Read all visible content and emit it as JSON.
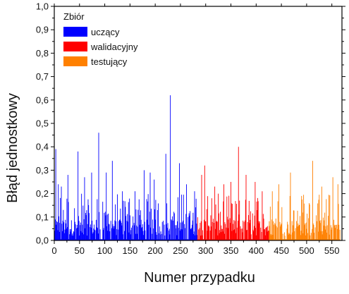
{
  "chart_data": {
    "type": "bar",
    "title": "",
    "xlabel": "Numer przypadku",
    "ylabel": "Błąd jednostkowy",
    "xlim": [
      0,
      570
    ],
    "ylim": [
      0,
      1.0
    ],
    "xticks": [
      "0",
      "50",
      "100",
      "150",
      "200",
      "250",
      "300",
      "350",
      "400",
      "450",
      "500",
      "550"
    ],
    "yticks": [
      "0,0",
      "0,1",
      "0,2",
      "0,3",
      "0,4",
      "0,5",
      "0,6",
      "0,7",
      "0,8",
      "0,9",
      "1,0"
    ],
    "grid": false,
    "legend": {
      "title": "Zbiór",
      "placement": "top-left"
    },
    "series": [
      {
        "name": "uczący",
        "color": "#0000ff",
        "x_range": [
          1,
          283
        ],
        "peaks": [
          {
            "x": 3,
            "y": 0.39
          },
          {
            "x": 8,
            "y": 0.24
          },
          {
            "x": 14,
            "y": 0.23
          },
          {
            "x": 27,
            "y": 0.28
          },
          {
            "x": 47,
            "y": 0.38
          },
          {
            "x": 60,
            "y": 0.27
          },
          {
            "x": 74,
            "y": 0.29
          },
          {
            "x": 88,
            "y": 0.46
          },
          {
            "x": 103,
            "y": 0.29
          },
          {
            "x": 115,
            "y": 0.34
          },
          {
            "x": 135,
            "y": 0.21
          },
          {
            "x": 160,
            "y": 0.21
          },
          {
            "x": 178,
            "y": 0.3
          },
          {
            "x": 190,
            "y": 0.29
          },
          {
            "x": 198,
            "y": 0.26
          },
          {
            "x": 221,
            "y": 0.37
          },
          {
            "x": 230,
            "y": 0.62
          },
          {
            "x": 248,
            "y": 0.33
          },
          {
            "x": 262,
            "y": 0.24
          },
          {
            "x": 278,
            "y": 0.21
          }
        ]
      },
      {
        "name": "walidacyjny",
        "color": "#ff0000",
        "x_range": [
          284,
          425
        ],
        "peaks": [
          {
            "x": 292,
            "y": 0.28
          },
          {
            "x": 298,
            "y": 0.32
          },
          {
            "x": 318,
            "y": 0.23
          },
          {
            "x": 336,
            "y": 0.24
          },
          {
            "x": 350,
            "y": 0.25
          },
          {
            "x": 365,
            "y": 0.4
          },
          {
            "x": 380,
            "y": 0.28
          },
          {
            "x": 398,
            "y": 0.25
          },
          {
            "x": 412,
            "y": 0.21
          }
        ]
      },
      {
        "name": "testujący",
        "color": "#ff8000",
        "x_range": [
          426,
          566
        ],
        "peaks": [
          {
            "x": 432,
            "y": 0.21
          },
          {
            "x": 445,
            "y": 0.24
          },
          {
            "x": 468,
            "y": 0.29
          },
          {
            "x": 490,
            "y": 0.19
          },
          {
            "x": 512,
            "y": 0.34
          },
          {
            "x": 530,
            "y": 0.23
          },
          {
            "x": 552,
            "y": 0.27
          },
          {
            "x": 562,
            "y": 0.24
          }
        ]
      }
    ]
  }
}
